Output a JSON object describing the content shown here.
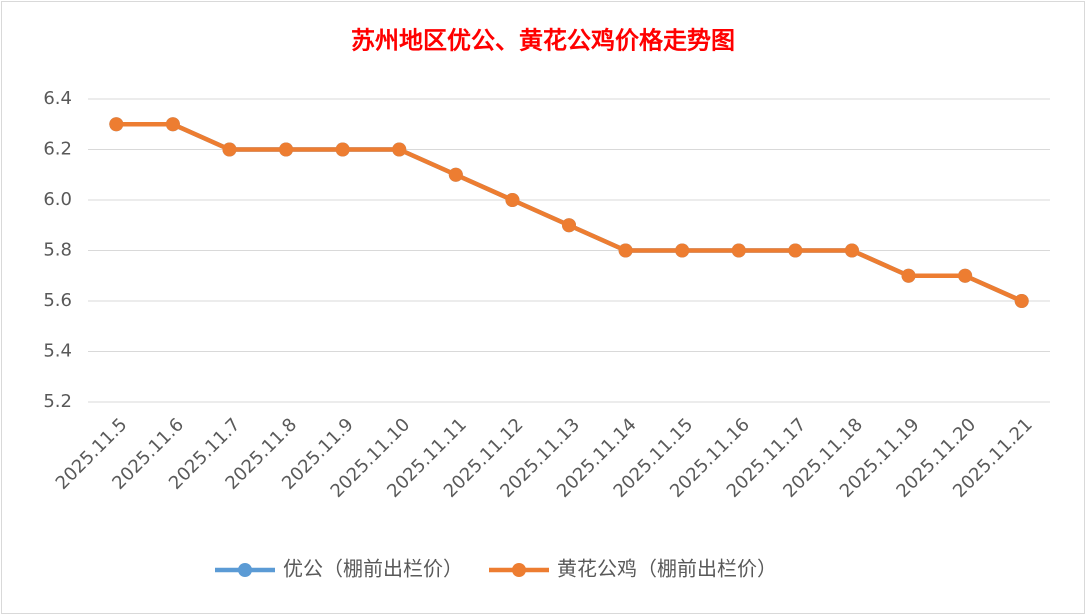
{
  "chart_data": {
    "type": "line",
    "title": "苏州地区优公、黄花公鸡价格走势图",
    "categories": [
      "2025.11.5",
      "2025.11.6",
      "2025.11.7",
      "2025.11.8",
      "2025.11.9",
      "2025.11.10",
      "2025.11.11",
      "2025.11.12",
      "2025.11.13",
      "2025.11.14",
      "2025.11.15",
      "2025.11.16",
      "2025.11.17",
      "2025.11.18",
      "2025.11.19",
      "2025.11.20",
      "2025.11.21"
    ],
    "series": [
      {
        "name": "优公（棚前出栏价）",
        "color": "#5b9bd5",
        "values": [
          6.3,
          6.3,
          6.2,
          6.2,
          6.2,
          6.2,
          6.1,
          6.0,
          5.9,
          5.8,
          5.8,
          5.8,
          5.8,
          5.8,
          5.7,
          5.7,
          5.6
        ]
      },
      {
        "name": "黄花公鸡（棚前出栏价）",
        "color": "#ed7d31",
        "values": [
          6.3,
          6.3,
          6.2,
          6.2,
          6.2,
          6.2,
          6.1,
          6.0,
          5.9,
          5.8,
          5.8,
          5.8,
          5.8,
          5.8,
          5.7,
          5.7,
          5.6
        ]
      }
    ],
    "ylim": [
      5.2,
      6.4
    ],
    "yticks": [
      5.2,
      5.4,
      5.6,
      5.8,
      {
        "value": 6,
        "label": "6.0"
      },
      6.2,
      6.4
    ],
    "grid": true,
    "legend": "bottom",
    "title_color": "#ff0000"
  }
}
